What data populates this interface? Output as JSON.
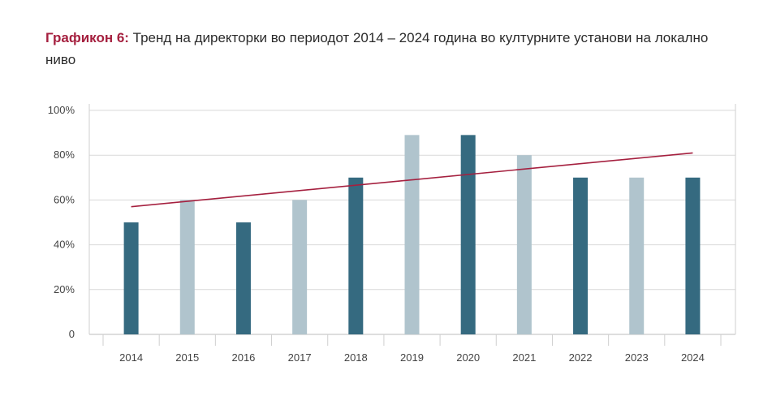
{
  "title": {
    "prefix": "Графикон 6:",
    "text": "Тренд на директорки во периодот 2014 – 2024 година во културните установи на локално ниво"
  },
  "colors": {
    "dark_bar": "#356a80",
    "light_bar": "#b0c4cd",
    "trend": "#a5203f",
    "title_accent": "#a5203f"
  },
  "chart_data": {
    "type": "bar",
    "categories": [
      "2014",
      "2015",
      "2016",
      "2017",
      "2018",
      "2019",
      "2020",
      "2021",
      "2022",
      "2023",
      "2024"
    ],
    "values": [
      50,
      60,
      50,
      60,
      70,
      89,
      89,
      80,
      70,
      70,
      70
    ],
    "bar_shades": [
      "dark",
      "light",
      "dark",
      "light",
      "dark",
      "light",
      "dark",
      "light",
      "dark",
      "light",
      "dark"
    ],
    "trendline": {
      "type": "linear",
      "start": 57,
      "end": 81
    },
    "y_ticks": [
      "0",
      "20%",
      "40%",
      "60%",
      "80%",
      "100%"
    ],
    "ylim": [
      0,
      100
    ],
    "grid": true
  }
}
